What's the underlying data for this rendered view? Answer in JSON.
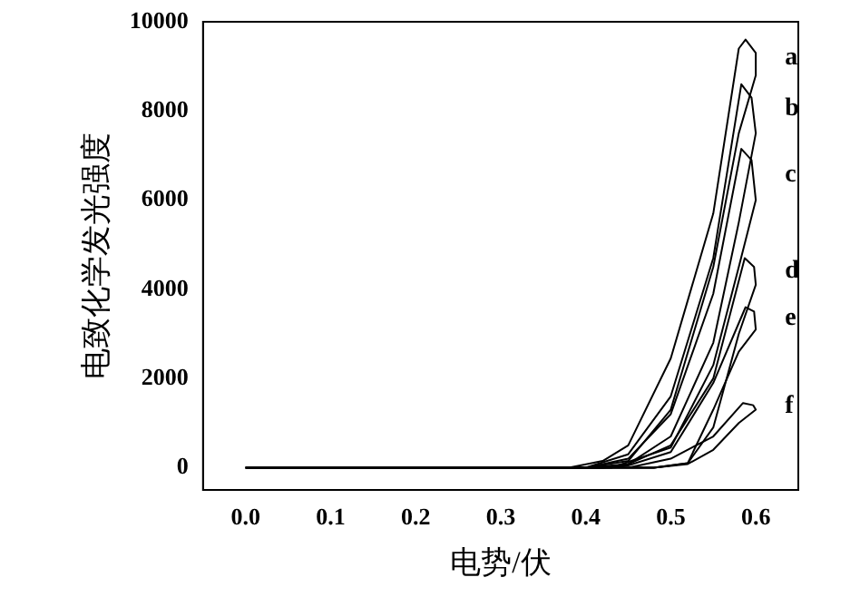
{
  "chart_data": {
    "type": "line",
    "xlabel": "电势/伏",
    "ylabel": "电致化学发光强度",
    "xlim": [
      -0.05,
      0.65
    ],
    "ylim": [
      -500,
      10000
    ],
    "xticks": [
      {
        "value": 0,
        "label": "0.0"
      },
      0.1,
      0.2,
      0.3,
      0.4,
      0.5,
      0.6
    ],
    "yticks": [
      0,
      2000,
      4000,
      6000,
      8000,
      10000
    ],
    "grid": false,
    "legend": false,
    "marker": "none",
    "line_style": "solid",
    "series": [
      {
        "name": "a",
        "color": "#000000",
        "x": [
          0,
          0.4,
          0.45,
          0.5,
          0.55,
          0.58,
          0.6,
          0.6,
          0.588,
          0.58,
          0.55,
          0.5,
          0.45,
          0.42,
          0.38
        ],
        "values": [
          0,
          0,
          150,
          1300,
          4500,
          7500,
          8800,
          9300,
          9600,
          9400,
          5700,
          2450,
          500,
          150,
          0
        ]
      },
      {
        "name": "b",
        "color": "#000000",
        "x": [
          0,
          0.42,
          0.45,
          0.5,
          0.55,
          0.58,
          0.6,
          0.595,
          0.583,
          0.55,
          0.5,
          0.45,
          0.4
        ],
        "values": [
          0,
          0,
          80,
          700,
          2800,
          5500,
          7500,
          8300,
          8600,
          4700,
          1600,
          300,
          0
        ]
      },
      {
        "name": "c",
        "color": "#000000",
        "x": [
          0,
          0.43,
          0.5,
          0.55,
          0.58,
          0.6,
          0.595,
          0.583,
          0.55,
          0.5,
          0.45,
          0.4
        ],
        "values": [
          0,
          0,
          450,
          2300,
          4500,
          6000,
          6900,
          7150,
          3900,
          1200,
          200,
          0
        ]
      },
      {
        "name": "d",
        "color": "#000000",
        "x": [
          0,
          0.48,
          0.52,
          0.55,
          0.58,
          0.6,
          0.598,
          0.587,
          0.55,
          0.5,
          0.45,
          0.4
        ],
        "values": [
          0,
          0,
          100,
          900,
          3000,
          4100,
          4500,
          4700,
          2000,
          500,
          80,
          0
        ]
      },
      {
        "name": "e",
        "color": "#000000",
        "x": [
          0,
          0.48,
          0.52,
          0.55,
          0.58,
          0.6,
          0.598,
          0.588,
          0.55,
          0.5,
          0.45,
          0.42
        ],
        "values": [
          0,
          0,
          100,
          1300,
          2600,
          3100,
          3500,
          3600,
          1900,
          350,
          50,
          0
        ]
      },
      {
        "name": "f",
        "color": "#000000",
        "x": [
          0,
          0.48,
          0.52,
          0.55,
          0.58,
          0.6,
          0.597,
          0.585,
          0.55,
          0.5,
          0.45
        ],
        "values": [
          0,
          0,
          80,
          400,
          1000,
          1300,
          1400,
          1450,
          700,
          200,
          0
        ]
      }
    ]
  }
}
